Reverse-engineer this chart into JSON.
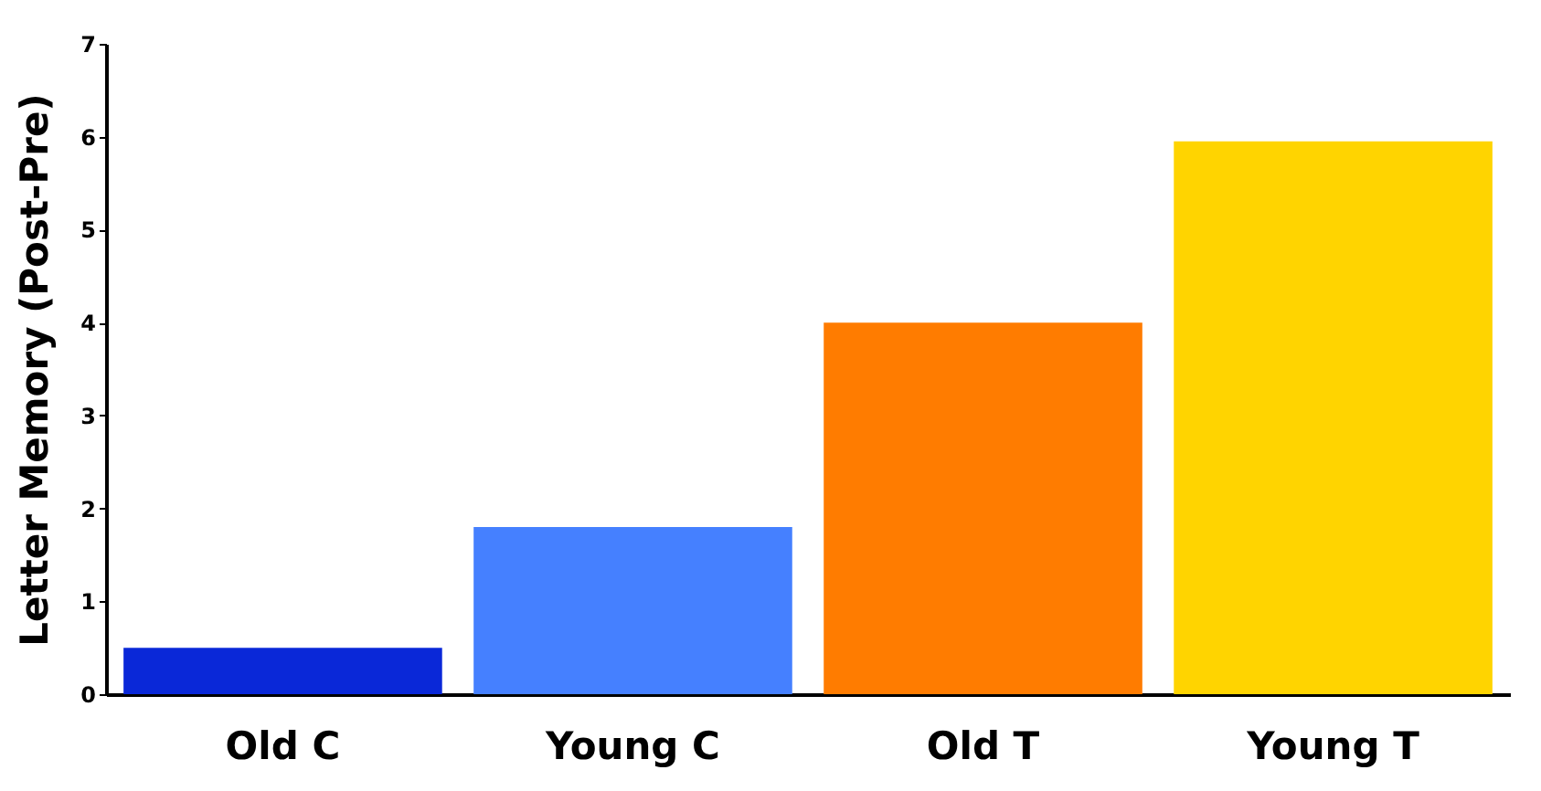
{
  "chart_data": {
    "type": "bar",
    "ylabel": "Letter Memory (Post-Pre)",
    "categories": [
      "Old C",
      "Young C",
      "Old T",
      "Young T"
    ],
    "values": [
      0.5,
      1.8,
      4.0,
      5.95
    ],
    "colors": [
      "#0a28d8",
      "#4580ff",
      "#ff7c00",
      "#ffd400"
    ],
    "ylim": [
      0,
      7
    ],
    "yticks": [
      0,
      1,
      2,
      3,
      4,
      5,
      6,
      7
    ],
    "grid": false,
    "legend": false
  }
}
